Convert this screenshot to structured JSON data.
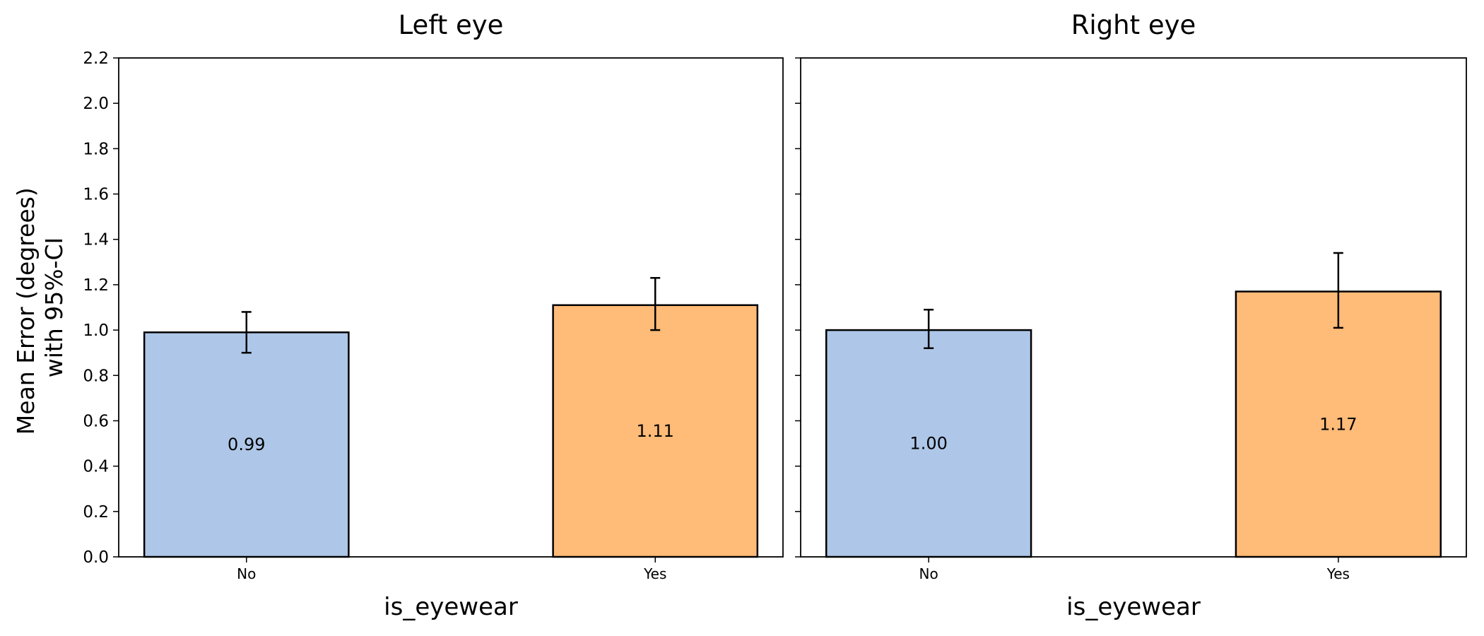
{
  "ylabel": [
    "Mean Error (degrees)",
    "with 95%-CI"
  ],
  "chart_data": [
    {
      "type": "bar",
      "title": "Left eye",
      "xlabel": "is_eyewear",
      "ylabel": "Mean Error (degrees) with 95%-CI",
      "categories": [
        "No",
        "Yes"
      ],
      "values": [
        0.99,
        1.11
      ],
      "value_labels": [
        "0.99",
        "1.11"
      ],
      "ci_low": [
        0.9,
        1.0
      ],
      "ci_high": [
        1.08,
        1.23
      ],
      "colors": [
        "#aec7e8",
        "#ffbb78"
      ],
      "ylim": [
        0,
        2.2
      ],
      "yticks": [
        "0.0",
        "0.2",
        "0.4",
        "0.6",
        "0.8",
        "1.0",
        "1.2",
        "1.4",
        "1.6",
        "1.8",
        "2.0",
        "2.2"
      ],
      "grid": false,
      "legend": "none"
    },
    {
      "type": "bar",
      "title": "Right eye",
      "xlabel": "is_eyewear",
      "ylabel": "Mean Error (degrees) with 95%-CI",
      "categories": [
        "No",
        "Yes"
      ],
      "values": [
        1.0,
        1.17
      ],
      "value_labels": [
        "1.00",
        "1.17"
      ],
      "ci_low": [
        0.92,
        1.01
      ],
      "ci_high": [
        1.09,
        1.34
      ],
      "colors": [
        "#aec7e8",
        "#ffbb78"
      ],
      "ylim": [
        0,
        2.2
      ],
      "yticks": [],
      "grid": false,
      "legend": "none"
    }
  ]
}
